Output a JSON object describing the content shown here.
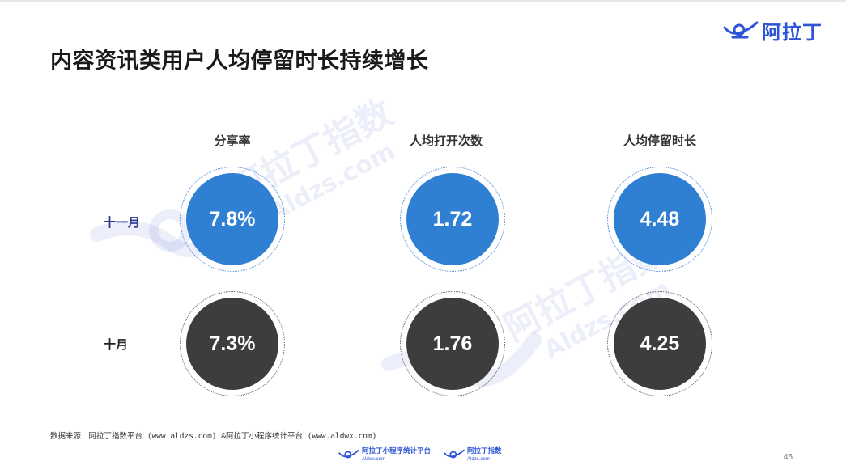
{
  "brand": {
    "name": "阿拉丁",
    "icon": "aladdin-lamp-icon",
    "color": "#2e55d6"
  },
  "title": "内容资讯类用户人均停留时长持续增长",
  "columns": [
    "分享率",
    "人均打开次数",
    "人均停留时长"
  ],
  "rows": [
    {
      "label": "十一月",
      "color": "#2f7fd3",
      "values": [
        "7.8%",
        "1.72",
        "4.48"
      ]
    },
    {
      "label": "十月",
      "color": "#3d3d3d",
      "values": [
        "7.3%",
        "1.76",
        "4.25"
      ]
    }
  ],
  "source": "数据来源：阿拉丁指数平台 (www.aldzs.com) &阿拉丁小程序统计平台 (www.aldwx.com)",
  "footer": {
    "logos": [
      {
        "name": "阿拉丁小程序统计平台",
        "url": "Aldwx.com",
        "icon": "aladdin-lamp-icon"
      },
      {
        "name": "阿拉丁指数",
        "url": "Aldzs.com",
        "icon": "aladdin-lamp-icon"
      }
    ]
  },
  "page_number": "45",
  "watermark": {
    "name": "阿拉丁指数",
    "url": "Aldzs.com"
  }
}
